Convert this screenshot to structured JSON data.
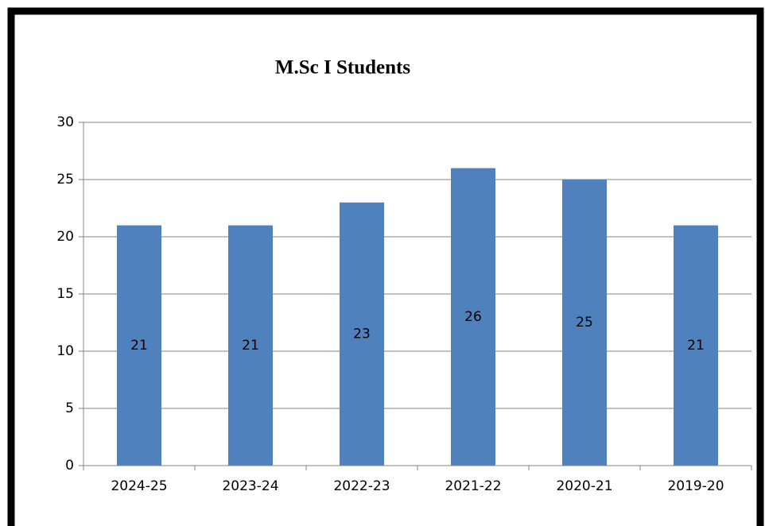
{
  "chart_data": {
    "type": "bar",
    "title": "M.Sc I Students",
    "categories": [
      "2024-25",
      "2023-24",
      "2022-23",
      "2021-22",
      "2020-21",
      "2019-20"
    ],
    "values": [
      21,
      21,
      23,
      26,
      25,
      21
    ],
    "color": "#4f81bd",
    "ylim": [
      0,
      30
    ],
    "yticks": [
      0,
      5,
      10,
      15,
      20,
      25,
      30
    ],
    "grid": true,
    "data_labels": true
  }
}
